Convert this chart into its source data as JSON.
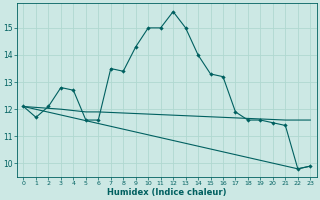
{
  "xlabel": "Humidex (Indice chaleur)",
  "bg_color": "#cce8e4",
  "grid_color": "#b0d8d0",
  "line_color": "#006060",
  "xlim": [
    -0.5,
    23.5
  ],
  "ylim": [
    9.5,
    15.9
  ],
  "xticks": [
    0,
    1,
    2,
    3,
    4,
    5,
    6,
    7,
    8,
    9,
    10,
    11,
    12,
    13,
    14,
    15,
    16,
    17,
    18,
    19,
    20,
    21,
    22,
    23
  ],
  "yticks": [
    10,
    11,
    12,
    13,
    14,
    15
  ],
  "line1_x": [
    0,
    1,
    2,
    3,
    4,
    5,
    6,
    7,
    8,
    9,
    10,
    11,
    12,
    13,
    14,
    15,
    16,
    17,
    18,
    19,
    20,
    21,
    22,
    23
  ],
  "line1_y": [
    12.1,
    11.7,
    12.1,
    12.8,
    12.7,
    11.6,
    11.6,
    13.5,
    13.4,
    14.3,
    15.0,
    15.0,
    15.6,
    15.0,
    14.0,
    13.3,
    13.2,
    11.9,
    11.6,
    11.6,
    11.5,
    11.4,
    9.8,
    9.9
  ],
  "line2_x": [
    0,
    3,
    5,
    6,
    21,
    22,
    23
  ],
  "line2_y": [
    12.1,
    12.0,
    11.9,
    11.9,
    11.6,
    11.6,
    11.6
  ],
  "line3_x": [
    0,
    22,
    23
  ],
  "line3_y": [
    12.1,
    9.8,
    9.9
  ]
}
